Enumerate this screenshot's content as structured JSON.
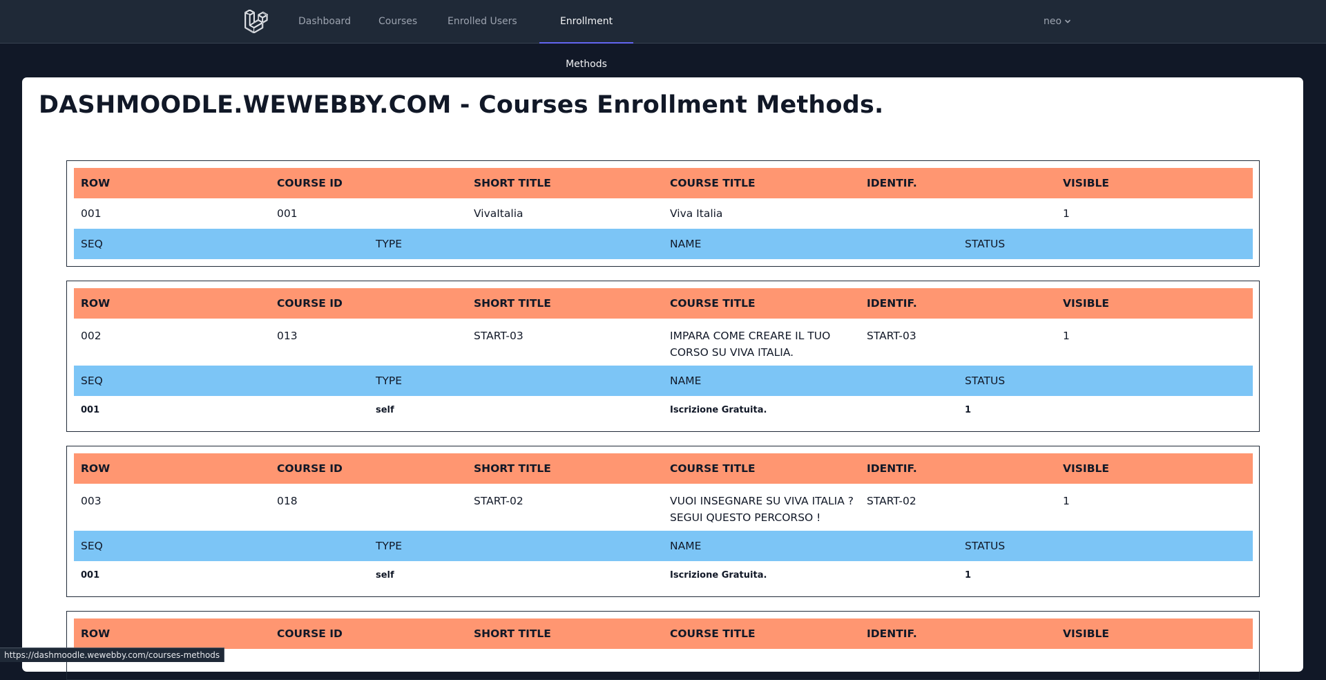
{
  "nav": {
    "items": [
      {
        "label": "Dashboard"
      },
      {
        "label": "Courses"
      },
      {
        "label": "Enrolled Users"
      },
      {
        "label": "Enrollment Methods"
      }
    ],
    "active": "Enrollment Methods",
    "user": "neo",
    "logo_icon": "laravel-logo-icon",
    "accent_color": "#6366f1"
  },
  "page": {
    "title": "DASHMOODLE.WEWEBBY.COM - Courses Enrollment Methods."
  },
  "course_headers": [
    "ROW",
    "COURSE ID",
    "SHORT TITLE",
    "COURSE TITLE",
    "IDENTIF.",
    "VISIBLE"
  ],
  "method_headers": [
    "SEQ",
    "TYPE",
    "NAME",
    "STATUS"
  ],
  "courses": [
    {
      "row": "001",
      "course_id": "001",
      "short_title": "VivaItalia",
      "course_title": "Viva Italia",
      "identif": "",
      "visible": "1",
      "methods": []
    },
    {
      "row": "002",
      "course_id": "013",
      "short_title": "START-03",
      "course_title": "IMPARA COME CREARE IL TUO CORSO SU VIVA ITALIA.",
      "identif": "START-03",
      "visible": "1",
      "methods": [
        {
          "seq": "001",
          "type": "self",
          "name": "Iscrizione Gratuita.",
          "status": "1"
        }
      ]
    },
    {
      "row": "003",
      "course_id": "018",
      "short_title": "START-02",
      "course_title": "VUOI INSEGNARE SU VIVA ITALIA ? SEGUI QUESTO PERCORSO !",
      "identif": "START-02",
      "visible": "1",
      "methods": [
        {
          "seq": "001",
          "type": "self",
          "name": "Iscrizione Gratuita.",
          "status": "1"
        }
      ]
    },
    {
      "row": "",
      "course_id": "",
      "short_title": "",
      "course_title": "",
      "identif": "",
      "visible": ""
    }
  ],
  "colors": {
    "course_header_bg": "#ff9671",
    "method_header_bg": "#7cc5f6"
  },
  "status_bar": {
    "url": "https://dashmoodle.wewebby.com/courses-methods"
  }
}
